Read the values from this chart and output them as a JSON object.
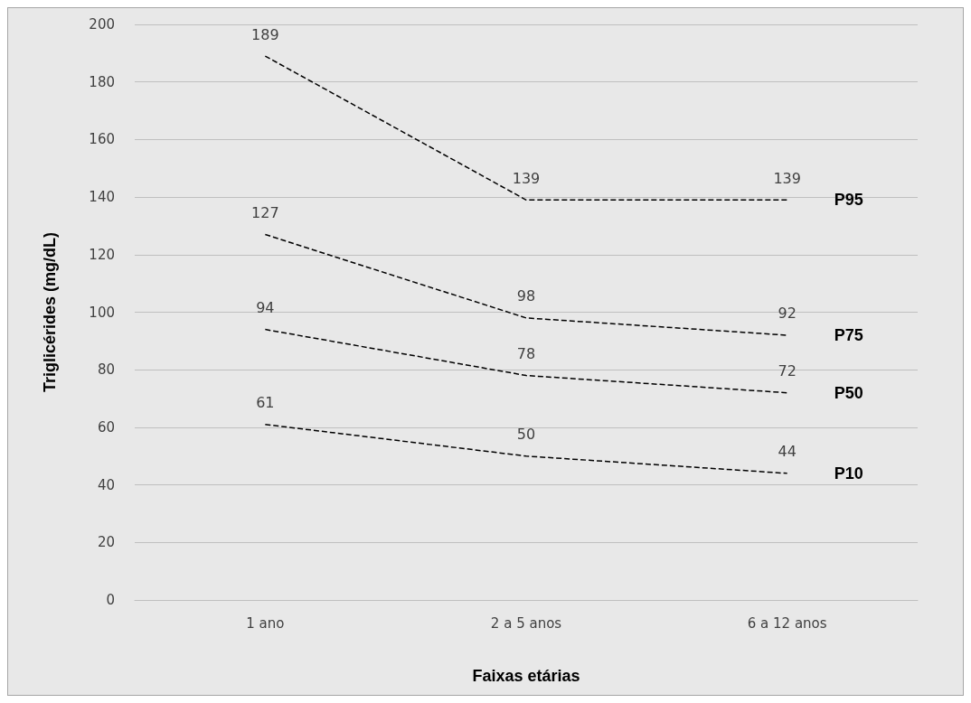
{
  "chart_data": {
    "type": "line",
    "xlabel": "Faixas etárias",
    "ylabel": "Triglicérides (mg/dL)",
    "categories": [
      "1 ano",
      "2 a 5 anos",
      "6 a 12 anos"
    ],
    "series": [
      {
        "name": "P95",
        "color": "#000000",
        "values": [
          189,
          139,
          139
        ]
      },
      {
        "name": "P75",
        "color": "#000000",
        "values": [
          127,
          98,
          92
        ]
      },
      {
        "name": "P50",
        "color": "#000000",
        "values": [
          94,
          78,
          72
        ]
      },
      {
        "name": "P10",
        "color": "#000000",
        "values": [
          61,
          50,
          44
        ]
      }
    ],
    "ylim": [
      0,
      200
    ],
    "yticks": [
      0,
      20,
      40,
      60,
      80,
      100,
      120,
      140,
      160,
      180,
      200
    ],
    "grid": "y",
    "line_style": "dashed",
    "marker": "none",
    "data_labels": true
  }
}
